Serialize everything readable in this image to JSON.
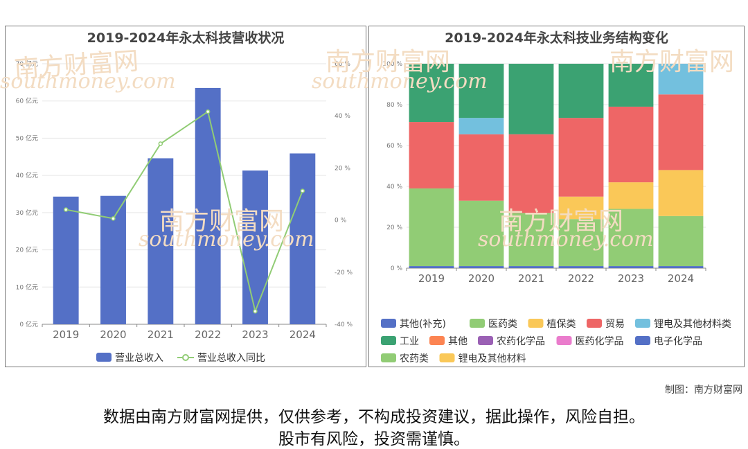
{
  "left_chart_title": "2019-2024年永太科技营收状况",
  "right_chart_title": "2019-2024年永太科技业务结构变化",
  "watermark": "南方财富网",
  "watermark_url": "southmoney.com",
  "credit": "制图：南方财富网",
  "disclaimer_line1": "数据由南方财富网提供，仅供参考，不构成投资建议，据此操作，风险自担。",
  "disclaimer_line2": "股市有风险，投资需谨慎。",
  "chart_data": [
    {
      "type": "bar",
      "title": "2019-2024年永太科技营收状况",
      "categories": [
        "2019",
        "2020",
        "2021",
        "2022",
        "2023",
        "2024"
      ],
      "series": [
        {
          "name": "营业总收入",
          "type": "bar",
          "axis": "left",
          "values": [
            34.3,
            34.5,
            44.6,
            63.5,
            41.3,
            45.9
          ],
          "color": "#5470c6"
        },
        {
          "name": "营业总收入同比",
          "type": "line",
          "axis": "right",
          "values": [
            4,
            0.6,
            29.3,
            41.6,
            -35.0,
            11.2
          ],
          "color": "#91cc75"
        }
      ],
      "yleft": {
        "ticks": [
          "0 亿元",
          "10 亿元",
          "20 亿元",
          "30 亿元",
          "40 亿元",
          "50 亿元",
          "60 亿元",
          "70 亿元"
        ],
        "min": 0,
        "max": 70
      },
      "yright": {
        "ticks": [
          "-40 %",
          "-20 %",
          "0 %",
          "20 %",
          "40 %",
          "60 %"
        ],
        "min": -40,
        "max": 60
      },
      "legend_position": "bottom"
    },
    {
      "type": "bar",
      "stacked": "percent",
      "title": "2019-2024年永太科技业务结构变化",
      "categories": [
        "2019",
        "2020",
        "2021",
        "2022",
        "2023",
        "2024"
      ],
      "y_ticks": [
        "0 %",
        "20 %",
        "40 %",
        "60 %",
        "80 %",
        "100 %"
      ],
      "series": [
        {
          "name": "其他(补充)",
          "color": "#5470c6",
          "values": [
            1,
            1,
            1,
            1,
            1,
            1
          ]
        },
        {
          "name": "医药类",
          "color": "#91cc75",
          "values": [
            38,
            32,
            26,
            23,
            28,
            24.5
          ]
        },
        {
          "name": "植保类",
          "color": "#fac858",
          "values": [
            0,
            0,
            0,
            11,
            13,
            22.5
          ]
        },
        {
          "name": "贸易",
          "color": "#ee6666",
          "values": [
            32.5,
            32.5,
            38.5,
            38.5,
            37,
            37
          ]
        },
        {
          "name": "锂电及其他材料类",
          "color": "#73c0de",
          "values": [
            0,
            8,
            0,
            0,
            0,
            15
          ]
        },
        {
          "name": "工业",
          "color": "#3ba272",
          "values": [
            28.5,
            26.5,
            34.5,
            26.5,
            21,
            0
          ]
        },
        {
          "name": "其他",
          "color": "#fc8452",
          "values": [
            0,
            0,
            0,
            0,
            0,
            0
          ]
        },
        {
          "name": "农药化学品",
          "color": "#9a60b4",
          "values": [
            0,
            0,
            0,
            0,
            0,
            0
          ]
        },
        {
          "name": "医药化学品",
          "color": "#ea7ccc",
          "values": [
            0,
            0,
            0,
            0,
            0,
            0
          ]
        },
        {
          "name": "电子化学品",
          "color": "#5470c6",
          "values": [
            0,
            0,
            0,
            0,
            0,
            0
          ]
        },
        {
          "name": "农药类",
          "color": "#91cc75",
          "values": [
            0,
            0,
            0,
            0,
            0,
            0
          ]
        },
        {
          "name": "锂电及其他材料",
          "color": "#fac858",
          "values": [
            0,
            0,
            0,
            0,
            0,
            0
          ]
        }
      ],
      "legend_position": "bottom"
    }
  ]
}
